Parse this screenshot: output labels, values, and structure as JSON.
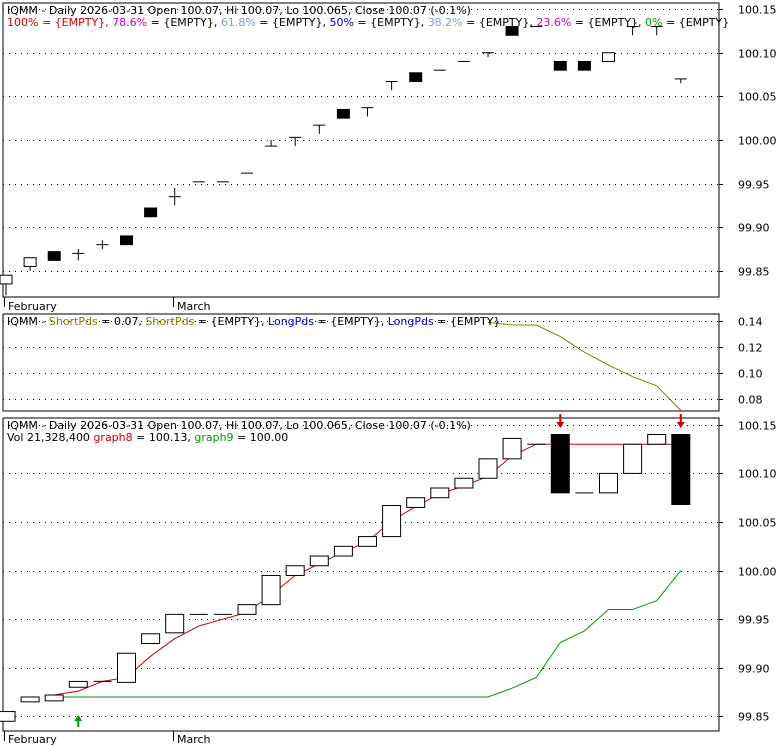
{
  "chart_data": [
    {
      "type": "candlestick",
      "title_parts": [
        {
          "text": "IQMM - Daily 2026-03-31 Open 100.07, Hi 100.07, Lo 100.065, Close 100.07 (-0.1%)",
          "color": "#000000"
        }
      ],
      "fib_parts": [
        {
          "text": "100% = {EMPTY}, ",
          "color": "#cc0000"
        },
        {
          "text": "78.6%",
          "color": "#cc00cc"
        },
        {
          "text": " = {EMPTY}, ",
          "color": "#000000"
        },
        {
          "text": "61.8%",
          "color": "#7f9fbf"
        },
        {
          "text": " = {EMPTY}, ",
          "color": "#000000"
        },
        {
          "text": "50%",
          "color": "#0000cc"
        },
        {
          "text": " = {EMPTY}, ",
          "color": "#000000"
        },
        {
          "text": "38.2%",
          "color": "#7f9fbf"
        },
        {
          "text": " = {EMPTY}, ",
          "color": "#000000"
        },
        {
          "text": "23.6%",
          "color": "#cc00cc"
        },
        {
          "text": " = {EMPTY}, ",
          "color": "#000000"
        },
        {
          "text": "0%",
          "color": "#009900"
        },
        {
          "text": " = {EMPTY}",
          "color": "#000000"
        }
      ],
      "x_labels": [
        {
          "index": 0,
          "label": "February"
        },
        {
          "index": 7,
          "label": "March"
        }
      ],
      "ylim": [
        99.82,
        100.157
      ],
      "y_ticks": [
        99.85,
        99.9,
        99.95,
        100.0,
        100.05,
        100.1,
        100.15
      ],
      "candles": [
        {
          "o": 99.845,
          "h": 99.845,
          "l": 99.822,
          "c": 99.835,
          "color": "white"
        },
        {
          "o": 99.855,
          "h": 99.865,
          "l": 99.85,
          "c": 99.865,
          "color": "white"
        },
        {
          "o": 99.872,
          "h": 99.872,
          "l": 99.862,
          "c": 99.862,
          "color": "black"
        },
        {
          "o": 99.87,
          "h": 99.875,
          "l": 99.862,
          "c": 99.87,
          "color": "white"
        },
        {
          "o": 99.88,
          "h": 99.885,
          "l": 99.875,
          "c": 99.88,
          "color": "white"
        },
        {
          "o": 99.89,
          "h": 99.89,
          "l": 99.88,
          "c": 99.88,
          "color": "black"
        },
        {
          "o": 99.922,
          "h": 99.922,
          "l": 99.912,
          "c": 99.912,
          "color": "black"
        },
        {
          "o": 99.935,
          "h": 99.945,
          "l": 99.925,
          "c": 99.935,
          "color": "white"
        },
        {
          "o": 99.952,
          "h": 99.952,
          "l": 99.952,
          "c": 99.952,
          "color": "white"
        },
        {
          "o": 99.952,
          "h": 99.952,
          "l": 99.952,
          "c": 99.952,
          "color": "white"
        },
        {
          "o": 99.962,
          "h": 99.962,
          "l": 99.962,
          "c": 99.962,
          "color": "white"
        },
        {
          "o": 99.993,
          "h": 100.0,
          "l": 99.993,
          "c": 99.993,
          "color": "white"
        },
        {
          "o": 100.003,
          "h": 100.003,
          "l": 99.993,
          "c": 100.003,
          "color": "white"
        },
        {
          "o": 100.017,
          "h": 100.017,
          "l": 100.007,
          "c": 100.017,
          "color": "white"
        },
        {
          "o": 100.035,
          "h": 100.035,
          "l": 100.025,
          "c": 100.025,
          "color": "black"
        },
        {
          "o": 100.037,
          "h": 100.037,
          "l": 100.027,
          "c": 100.037,
          "color": "white"
        },
        {
          "o": 100.067,
          "h": 100.067,
          "l": 100.057,
          "c": 100.067,
          "color": "white"
        },
        {
          "o": 100.077,
          "h": 100.077,
          "l": 100.067,
          "c": 100.067,
          "color": "black"
        },
        {
          "o": 100.08,
          "h": 100.08,
          "l": 100.08,
          "c": 100.08,
          "color": "white"
        },
        {
          "o": 100.09,
          "h": 100.09,
          "l": 100.09,
          "c": 100.09,
          "color": "white"
        },
        {
          "o": 100.1,
          "h": 100.1,
          "l": 100.095,
          "c": 100.1,
          "color": "white"
        },
        {
          "o": 100.13,
          "h": 100.13,
          "l": 100.12,
          "c": 100.12,
          "color": "black"
        },
        {
          "o": 100.13,
          "h": 100.13,
          "l": 100.13,
          "c": 100.13,
          "color": "white"
        },
        {
          "o": 100.09,
          "h": 100.09,
          "l": 100.08,
          "c": 100.08,
          "color": "black"
        },
        {
          "o": 100.09,
          "h": 100.09,
          "l": 100.08,
          "c": 100.08,
          "color": "black"
        },
        {
          "o": 100.1,
          "h": 100.1,
          "l": 100.09,
          "c": 100.09,
          "color": "white"
        },
        {
          "o": 100.13,
          "h": 100.13,
          "l": 100.12,
          "c": 100.13,
          "color": "white"
        },
        {
          "o": 100.13,
          "h": 100.13,
          "l": 100.12,
          "c": 100.13,
          "color": "white"
        },
        {
          "o": 100.07,
          "h": 100.07,
          "l": 100.065,
          "c": 100.07,
          "color": "white"
        }
      ]
    },
    {
      "type": "line",
      "title_parts": [
        {
          "text": "IQMM - ",
          "color": "#000000"
        },
        {
          "text": "ShortPds",
          "color": "#808000"
        },
        {
          "text": " = 0.07, ",
          "color": "#000000"
        },
        {
          "text": "ShortPds",
          "color": "#808000"
        },
        {
          "text": " = {EMPTY}, ",
          "color": "#000000"
        },
        {
          "text": "LongPds",
          "color": "#0000cc"
        },
        {
          "text": " = {EMPTY}, ",
          "color": "#000000"
        },
        {
          "text": "LongPds",
          "color": "#0000cc"
        },
        {
          "text": " = {EMPTY}",
          "color": "#000000"
        }
      ],
      "ylim": [
        0.0705,
        0.1455
      ],
      "y_ticks": [
        0.08,
        0.1,
        0.12,
        0.14
      ],
      "series": [
        {
          "color": "#808000",
          "points": [
            [
              20,
              0.139
            ],
            [
              21,
              0.137
            ],
            [
              22,
              0.137
            ],
            [
              23,
              0.128
            ],
            [
              24,
              0.116
            ],
            [
              25,
              0.106
            ],
            [
              26,
              0.097
            ],
            [
              27,
              0.09
            ],
            [
              28,
              0.071
            ]
          ]
        }
      ]
    },
    {
      "type": "candlestick",
      "title_parts": [
        {
          "text": "IQMM - Daily 2026-03-31 Open 100.07, Hi 100.07, Lo 100.065, Close 100.07 (-0.1%)",
          "color": "#000000"
        }
      ],
      "subtitle_parts": [
        {
          "text": "Vol 21,328,400 ",
          "color": "#000000"
        },
        {
          "text": "graph8",
          "color": "#cc0000"
        },
        {
          "text": " = 100.13, ",
          "color": "#000000"
        },
        {
          "text": "graph9",
          "color": "#009900"
        },
        {
          "text": " = 100.00",
          "color": "#000000"
        }
      ],
      "x_labels": [
        {
          "index": 0,
          "label": "February"
        },
        {
          "index": 7,
          "label": "March"
        }
      ],
      "ylim": [
        99.835,
        100.157
      ],
      "y_ticks": [
        99.85,
        99.9,
        99.95,
        100.0,
        100.05,
        100.1,
        100.15
      ],
      "candles": [
        {
          "o": 99.845,
          "c": 99.855,
          "color": "white"
        },
        {
          "o": 99.865,
          "c": 99.87,
          "color": "white"
        },
        {
          "o": 99.866,
          "c": 99.872,
          "color": "white"
        },
        {
          "o": 99.88,
          "c": 99.886,
          "color": "white"
        },
        {
          "o": 99.886,
          "c": 99.886,
          "color": "white"
        },
        {
          "o": 99.885,
          "c": 99.915,
          "color": "white"
        },
        {
          "o": 99.925,
          "c": 99.935,
          "color": "white"
        },
        {
          "o": 99.936,
          "c": 99.955,
          "color": "white"
        },
        {
          "o": 99.955,
          "c": 99.955,
          "color": "white"
        },
        {
          "o": 99.955,
          "c": 99.955,
          "color": "white"
        },
        {
          "o": 99.955,
          "c": 99.965,
          "color": "white"
        },
        {
          "o": 99.965,
          "c": 99.995,
          "color": "white"
        },
        {
          "o": 99.995,
          "c": 100.005,
          "color": "white"
        },
        {
          "o": 100.005,
          "c": 100.015,
          "color": "white"
        },
        {
          "o": 100.015,
          "c": 100.025,
          "color": "white"
        },
        {
          "o": 100.025,
          "c": 100.035,
          "color": "white"
        },
        {
          "o": 100.035,
          "c": 100.067,
          "color": "white"
        },
        {
          "o": 100.065,
          "c": 100.075,
          "color": "white"
        },
        {
          "o": 100.075,
          "c": 100.085,
          "color": "white"
        },
        {
          "o": 100.085,
          "c": 100.095,
          "color": "white"
        },
        {
          "o": 100.095,
          "c": 100.115,
          "color": "white"
        },
        {
          "o": 100.115,
          "c": 100.136,
          "color": "white"
        },
        {
          "o": 100.13,
          "c": 100.13,
          "color": "white"
        },
        {
          "o": 100.14,
          "c": 100.08,
          "color": "black"
        },
        {
          "o": 100.08,
          "c": 100.08,
          "color": "white"
        },
        {
          "o": 100.08,
          "c": 100.1,
          "color": "white"
        },
        {
          "o": 100.1,
          "c": 100.13,
          "color": "white"
        },
        {
          "o": 100.13,
          "c": 100.14,
          "color": "white"
        },
        {
          "o": 100.14,
          "c": 100.068,
          "color": "black"
        }
      ],
      "series": [
        {
          "color": "#cc0000",
          "points": [
            [
              2,
              99.872
            ],
            [
              3,
              99.876
            ],
            [
              4,
              99.886
            ],
            [
              5,
              99.89
            ],
            [
              6,
              99.912
            ],
            [
              7,
              99.93
            ],
            [
              8,
              99.943
            ],
            [
              9,
              99.95
            ],
            [
              10,
              99.957
            ],
            [
              11,
              99.975
            ],
            [
              12,
              99.995
            ],
            [
              13,
              100.007
            ],
            [
              14,
              100.019
            ],
            [
              15,
              100.03
            ],
            [
              16,
              100.051
            ],
            [
              17,
              100.066
            ],
            [
              18,
              100.079
            ],
            [
              19,
              100.087
            ],
            [
              20,
              100.097
            ],
            [
              21,
              100.118
            ],
            [
              22,
              100.13
            ],
            [
              23,
              100.13
            ],
            [
              24,
              100.13
            ],
            [
              25,
              100.13
            ],
            [
              26,
              100.13
            ],
            [
              27,
              100.13
            ],
            [
              28,
              100.13
            ]
          ]
        },
        {
          "color": "#009900",
          "points": [
            [
              2,
              99.87
            ],
            [
              3,
              99.87
            ],
            [
              4,
              99.87
            ],
            [
              5,
              99.87
            ],
            [
              6,
              99.87
            ],
            [
              7,
              99.87
            ],
            [
              8,
              99.87
            ],
            [
              9,
              99.87
            ],
            [
              10,
              99.87
            ],
            [
              11,
              99.87
            ],
            [
              12,
              99.87
            ],
            [
              13,
              99.87
            ],
            [
              14,
              99.87
            ],
            [
              15,
              99.87
            ],
            [
              16,
              99.87
            ],
            [
              17,
              99.87
            ],
            [
              18,
              99.87
            ],
            [
              19,
              99.87
            ],
            [
              20,
              99.87
            ],
            [
              21,
              99.879
            ],
            [
              22,
              99.89
            ],
            [
              23,
              99.926
            ],
            [
              24,
              99.938
            ],
            [
              25,
              99.96
            ],
            [
              26,
              99.96
            ],
            [
              27,
              99.969
            ],
            [
              28,
              100.0
            ]
          ]
        }
      ],
      "markers": [
        {
          "index": 3,
          "direction": "up",
          "color": "#009900"
        },
        {
          "index": 23,
          "direction": "down",
          "color": "#cc0000"
        },
        {
          "index": 28,
          "direction": "down",
          "color": "#cc0000"
        }
      ]
    }
  ]
}
